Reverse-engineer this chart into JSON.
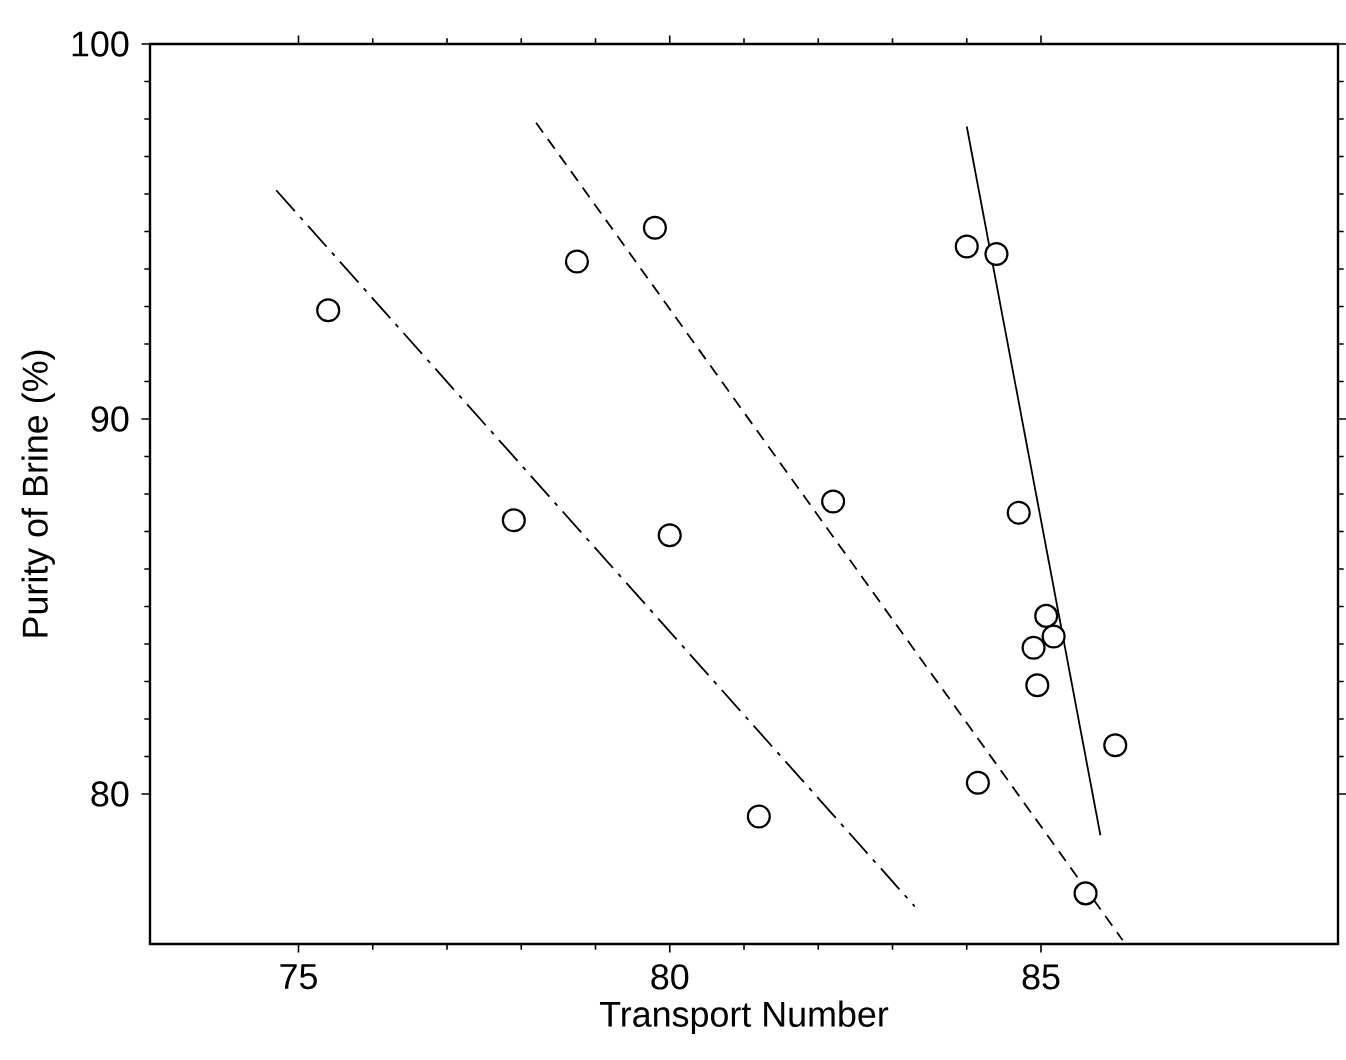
{
  "chart_data": {
    "type": "scatter",
    "xlabel": "Transport Number",
    "ylabel": "Purity of Brine (%)",
    "xlim": [
      73,
      89
    ],
    "ylim": [
      76,
      100
    ],
    "xticks": [
      75,
      80,
      85
    ],
    "yticks": [
      80,
      90,
      100
    ],
    "grid": false,
    "marker": "circle",
    "series": [
      {
        "color": "#000000",
        "x": [
          75.4,
          77.9,
          80.0,
          81.2
        ],
        "values": [
          92.9,
          87.3,
          86.9,
          79.4
        ]
      },
      {
        "color": "#000000",
        "x": [
          78.75,
          79.8,
          82.2,
          84.15,
          85.6
        ],
        "values": [
          94.2,
          95.1,
          87.8,
          80.3,
          77.35
        ]
      },
      {
        "color": "#000000",
        "x": [
          84.0,
          84.4,
          84.7,
          85.07,
          85.17,
          84.9,
          84.95,
          86.0
        ],
        "values": [
          94.6,
          94.4,
          87.5,
          84.75,
          84.2,
          83.9,
          82.9,
          81.3
        ]
      },
      {
        "type": "line",
        "color": "#000000",
        "marker": "none",
        "line_style": "dashdot",
        "x": [
          74.7,
          83.3
        ],
        "values": [
          96.1,
          77.0
        ]
      },
      {
        "type": "line",
        "color": "#000000",
        "marker": "none",
        "line_style": "dashed",
        "x": [
          78.2,
          86.1
        ],
        "values": [
          97.9,
          76.1
        ]
      },
      {
        "type": "line",
        "color": "#000000",
        "marker": "none",
        "line_style": "solid",
        "x": [
          84.0,
          85.8
        ],
        "values": [
          97.8,
          78.9
        ]
      }
    ]
  }
}
